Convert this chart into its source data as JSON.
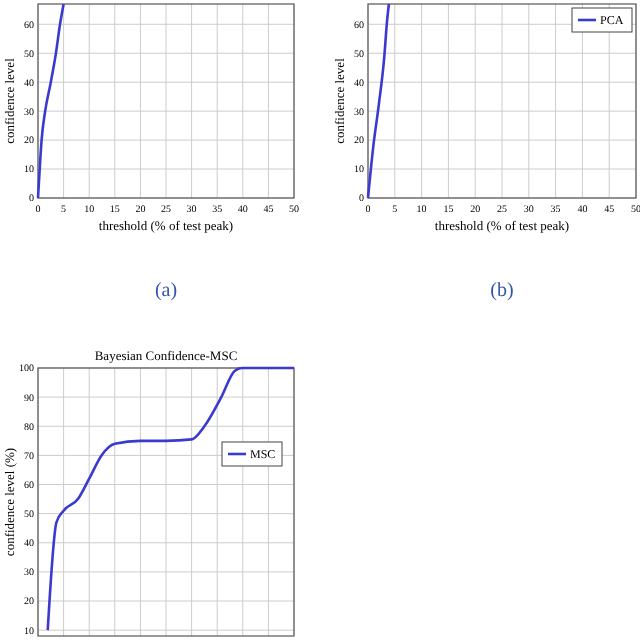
{
  "chart_data": [
    {
      "type": "line",
      "xlabel": "threshold (% of test peak)",
      "ylabel": "confidence level",
      "annotations": [
        "(a)"
      ],
      "xlim": [
        0,
        50
      ],
      "xticks": [
        0,
        5,
        10,
        15,
        20,
        25,
        30,
        35,
        40,
        45,
        50
      ],
      "ylim": [
        0,
        67
      ],
      "yticks": [
        0,
        10,
        20,
        30,
        40,
        50,
        60
      ],
      "grid": true,
      "legend": false,
      "series": [
        {
          "color": "#3a3ad0",
          "x": [
            0,
            0.5,
            0.7,
            1.4,
            2.5,
            3.5,
            4.3,
            5
          ],
          "values": [
            0,
            15,
            20,
            30,
            40,
            50,
            60,
            67
          ]
        }
      ]
    },
    {
      "type": "line",
      "xlabel": "threshold (% of test peak)",
      "ylabel": "confidence level",
      "annotations": [
        "(b)"
      ],
      "xlim": [
        0,
        50
      ],
      "xticks": [
        0,
        5,
        10,
        15,
        20,
        25,
        30,
        35,
        40,
        45,
        50
      ],
      "ylim": [
        0,
        67
      ],
      "yticks": [
        0,
        10,
        20,
        30,
        40,
        50,
        60
      ],
      "grid": true,
      "legend": "top right",
      "series": [
        {
          "name": "PCA",
          "color": "#3a3ad0",
          "x": [
            0,
            1,
            2,
            3,
            3.6,
            3.9
          ],
          "values": [
            0,
            18,
            32,
            48,
            62,
            67
          ]
        }
      ]
    },
    {
      "type": "line",
      "title": "Bayesian Confidence-MSC",
      "ylabel": "confidence level (%)",
      "xlim": [
        0,
        50
      ],
      "xticks": [
        0,
        5,
        10,
        15,
        20,
        25,
        30,
        35,
        40,
        45,
        50
      ],
      "ylim": [
        8,
        100
      ],
      "yticks": [
        10,
        20,
        30,
        40,
        50,
        60,
        70,
        80,
        90,
        100
      ],
      "grid": true,
      "legend": "right",
      "tick_labels": "y",
      "series": [
        {
          "name": "MSC",
          "color": "#3a3ad0",
          "x": [
            1.9,
            3.6,
            5,
            7.8,
            10,
            12.4,
            15,
            20,
            25,
            30,
            32.5,
            35.8,
            38.4,
            39.8,
            45,
            50
          ],
          "values": [
            10,
            47,
            51,
            55,
            62,
            70,
            74,
            75,
            75,
            75.5,
            80,
            90,
            99,
            100,
            100,
            100
          ]
        }
      ]
    }
  ]
}
